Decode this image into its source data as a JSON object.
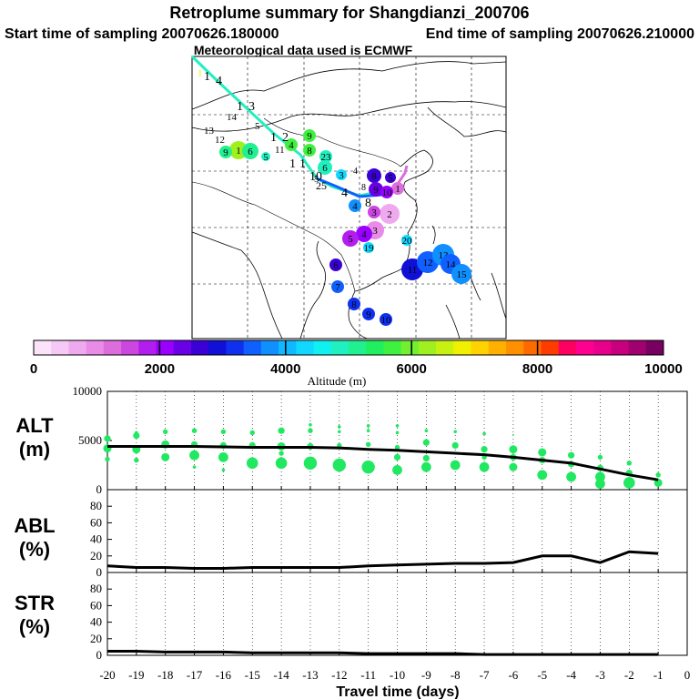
{
  "header": {
    "title": "Retroplume summary for Shangdianzi_200706",
    "start_label": "Start time of sampling 20070626.180000",
    "end_label": "End time of sampling 20070626.210000",
    "met_label": "Meteorological data used is ECMWF"
  },
  "colorbar": {
    "label": "Altitude (m)",
    "ticks": [
      "0",
      "2000",
      "4000",
      "6000",
      "8000",
      "10000"
    ],
    "colors": [
      "#fbe4fb",
      "#f5c8f5",
      "#efaaef",
      "#e88ce8",
      "#dc6edc",
      "#cc46e0",
      "#b21ef0",
      "#9900ff",
      "#6a00e6",
      "#3a00d6",
      "#1010d6",
      "#1030f0",
      "#1060ff",
      "#1090ff",
      "#10b8ff",
      "#10d8ff",
      "#10f0f0",
      "#20f0c0",
      "#20f090",
      "#20f060",
      "#40f040",
      "#70f030",
      "#a0f020",
      "#c8f010",
      "#f0f000",
      "#ffd200",
      "#ffb000",
      "#ff9000",
      "#ff6a00",
      "#ff3c00",
      "#ff0060",
      "#ff0090",
      "#e8008c",
      "#c80080",
      "#a00070",
      "#780060"
    ]
  },
  "map": {
    "plume_points": [
      {
        "label": "1",
        "x": 437,
        "y": 207,
        "r": 7,
        "color": "#dc6edc"
      },
      {
        "label": "2",
        "x": 428,
        "y": 235,
        "r": 11,
        "color": "#efaaef"
      },
      {
        "label": "3",
        "x": 412,
        "y": 253,
        "r": 10,
        "color": "#e88ce8"
      },
      {
        "label": "4",
        "x": 400,
        "y": 257,
        "r": 9,
        "color": "#9900ff"
      },
      {
        "label": "5",
        "x": 385,
        "y": 262,
        "r": 9,
        "color": "#b21ef0"
      },
      {
        "label": "6",
        "x": 369,
        "y": 291,
        "r": 7,
        "color": "#3a00d6"
      },
      {
        "label": "7",
        "x": 371,
        "y": 315,
        "r": 7,
        "color": "#1060ff"
      },
      {
        "label": "8",
        "x": 389,
        "y": 334,
        "r": 7,
        "color": "#1030f0"
      },
      {
        "label": "9",
        "x": 405,
        "y": 345,
        "r": 7,
        "color": "#1030f0"
      },
      {
        "label": "10",
        "x": 424,
        "y": 351,
        "r": 7,
        "color": "#1030f0"
      },
      {
        "label": "11",
        "x": 453,
        "y": 296,
        "r": 12,
        "color": "#1010d6"
      },
      {
        "label": "12",
        "x": 470,
        "y": 288,
        "r": 12,
        "color": "#1060ff"
      },
      {
        "label": "13",
        "x": 487,
        "y": 280,
        "r": 12,
        "color": "#1090ff"
      },
      {
        "label": "14",
        "x": 495,
        "y": 290,
        "r": 11,
        "color": "#1060ff"
      },
      {
        "label": "15",
        "x": 507,
        "y": 301,
        "r": 11,
        "color": "#1090ff"
      },
      {
        "label": "8",
        "x": 411,
        "y": 193,
        "r": 8,
        "color": "#3a00d6"
      },
      {
        "label": "9",
        "x": 413,
        "y": 208,
        "r": 8,
        "color": "#6a00e6"
      },
      {
        "label": "10",
        "x": 425,
        "y": 211,
        "r": 7,
        "color": "#9900ff"
      },
      {
        "label": "5",
        "x": 429,
        "y": 195,
        "r": 6,
        "color": "#3a00d6"
      },
      {
        "label": "3",
        "x": 411,
        "y": 233,
        "r": 7,
        "color": "#cc46e0"
      },
      {
        "label": "4",
        "x": 390,
        "y": 226,
        "r": 7,
        "color": "#1090ff"
      },
      {
        "label": "19",
        "x": 405,
        "y": 272,
        "r": 6,
        "color": "#10d8ff"
      },
      {
        "label": "20",
        "x": 447,
        "y": 264,
        "r": 6,
        "color": "#10d8ff"
      },
      {
        "label": "1",
        "x": 262,
        "y": 165,
        "r": 10,
        "color": "#a0f020"
      },
      {
        "label": "6",
        "x": 275,
        "y": 166,
        "r": 9,
        "color": "#20f090"
      },
      {
        "label": "9",
        "x": 248,
        "y": 167,
        "r": 7,
        "color": "#20f090"
      },
      {
        "label": "4",
        "x": 320,
        "y": 159,
        "r": 7,
        "color": "#40f040"
      },
      {
        "label": "8",
        "x": 340,
        "y": 165,
        "r": 7,
        "color": "#40f040"
      },
      {
        "label": "9",
        "x": 340,
        "y": 149,
        "r": 7,
        "color": "#40f040"
      },
      {
        "label": "6",
        "x": 357,
        "y": 184,
        "r": 8,
        "color": "#20f0c0"
      },
      {
        "label": "23",
        "x": 358,
        "y": 172,
        "r": 7,
        "color": "#20f0c0"
      },
      {
        "label": "3",
        "x": 375,
        "y": 192,
        "r": 6,
        "color": "#10d8ff"
      },
      {
        "label": "5",
        "x": 292,
        "y": 172,
        "r": 5,
        "color": "#20f0c0"
      }
    ],
    "track_labels": [
      {
        "label": "1",
        "x": 217,
        "y": 84,
        "size": 11,
        "color": "#f0f000"
      },
      {
        "label": "1",
        "x": 224,
        "y": 88,
        "size": 14,
        "color": "#000"
      },
      {
        "label": "4",
        "x": 237,
        "y": 93,
        "size": 14,
        "color": "#000"
      },
      {
        "label": "1",
        "x": 260,
        "y": 121,
        "size": 14,
        "color": "#000"
      },
      {
        "label": "3",
        "x": 273,
        "y": 121,
        "size": 14,
        "color": "#000"
      },
      {
        "label": "14",
        "x": 249,
        "y": 132,
        "size": 11,
        "color": "#000"
      },
      {
        "label": "5",
        "x": 280,
        "y": 142,
        "size": 11,
        "color": "#000"
      },
      {
        "label": "1",
        "x": 297,
        "y": 155,
        "size": 14,
        "color": "#000"
      },
      {
        "label": "2",
        "x": 310,
        "y": 155,
        "size": 14,
        "color": "#000"
      },
      {
        "label": "13",
        "x": 224,
        "y": 147,
        "size": 11,
        "color": "#000"
      },
      {
        "label": "12",
        "x": 236,
        "y": 157,
        "size": 11,
        "color": "#000"
      },
      {
        "label": "1",
        "x": 318,
        "y": 184,
        "size": 14,
        "color": "#000"
      },
      {
        "label": "1",
        "x": 329,
        "y": 184,
        "size": 14,
        "color": "#000"
      },
      {
        "label": "11",
        "x": 302,
        "y": 168,
        "size": 11,
        "color": "#000"
      },
      {
        "label": "10",
        "x": 340,
        "y": 198,
        "size": 14,
        "color": "#000"
      },
      {
        "label": "25",
        "x": 347,
        "y": 208,
        "size": 12,
        "color": "#000"
      },
      {
        "label": "4",
        "x": 388,
        "y": 191,
        "size": 10,
        "color": "#000"
      },
      {
        "label": "4",
        "x": 375,
        "y": 216,
        "size": 14,
        "color": "#000"
      },
      {
        "label": "8",
        "x": 397,
        "y": 209,
        "size": 10,
        "color": "#000"
      },
      {
        "label": "8",
        "x": 401,
        "y": 227,
        "size": 14,
        "color": "#000"
      },
      {
        "label": "5",
        "x": 345,
        "y": 200,
        "size": 11,
        "color": "#000"
      }
    ]
  },
  "chart_data": [
    {
      "type": "scatter",
      "title": "ALT (m)",
      "xlabel": "Travel time (days)",
      "ylabel": "ALT (m)",
      "xlim": [
        -20,
        0
      ],
      "ylim": [
        0,
        10000
      ],
      "y_ticks": [
        "0",
        "5000",
        "10000"
      ],
      "grid": "dotted",
      "median_line": {
        "x": [
          -20,
          -19,
          -18,
          -17,
          -16,
          -15,
          -14,
          -13,
          -12,
          -11,
          -10,
          -9,
          -8,
          -7,
          -6,
          -5,
          -4,
          -3,
          -2,
          -1
        ],
        "y": [
          4400,
          4400,
          4400,
          4400,
          4350,
          4300,
          4300,
          4300,
          4250,
          4100,
          4000,
          3850,
          3700,
          3550,
          3300,
          3000,
          2700,
          2100,
          1500,
          1000
        ]
      },
      "points": [
        {
          "x": -20,
          "y": 5200,
          "s": 4
        },
        {
          "x": -20,
          "y": 4200,
          "s": 5
        },
        {
          "x": -20,
          "y": 3100,
          "s": 3
        },
        {
          "x": -19,
          "y": 5500,
          "s": 4
        },
        {
          "x": -19,
          "y": 4100,
          "s": 5
        },
        {
          "x": -19,
          "y": 3000,
          "s": 3
        },
        {
          "x": -19,
          "y": 5800,
          "s": 2
        },
        {
          "x": -18,
          "y": 5900,
          "s": 3
        },
        {
          "x": -18,
          "y": 4600,
          "s": 5
        },
        {
          "x": -18,
          "y": 3300,
          "s": 5
        },
        {
          "x": -17,
          "y": 6000,
          "s": 3
        },
        {
          "x": -17,
          "y": 4600,
          "s": 4
        },
        {
          "x": -17,
          "y": 3500,
          "s": 6
        },
        {
          "x": -17,
          "y": 2300,
          "s": 2
        },
        {
          "x": -16,
          "y": 5900,
          "s": 3
        },
        {
          "x": -16,
          "y": 4500,
          "s": 4
        },
        {
          "x": -16,
          "y": 3300,
          "s": 6
        },
        {
          "x": -16,
          "y": 2000,
          "s": 2
        },
        {
          "x": -15,
          "y": 5800,
          "s": 3
        },
        {
          "x": -15,
          "y": 4500,
          "s": 4
        },
        {
          "x": -15,
          "y": 2700,
          "s": 7
        },
        {
          "x": -14,
          "y": 6000,
          "s": 4
        },
        {
          "x": -14,
          "y": 4400,
          "s": 5
        },
        {
          "x": -14,
          "y": 2700,
          "s": 7
        },
        {
          "x": -14,
          "y": 3700,
          "s": 3
        },
        {
          "x": -13,
          "y": 6600,
          "s": 2
        },
        {
          "x": -13,
          "y": 6000,
          "s": 3
        },
        {
          "x": -13,
          "y": 4400,
          "s": 4
        },
        {
          "x": -13,
          "y": 2700,
          "s": 8
        },
        {
          "x": -12,
          "y": 6400,
          "s": 2
        },
        {
          "x": -12,
          "y": 5900,
          "s": 2
        },
        {
          "x": -12,
          "y": 4500,
          "s": 3
        },
        {
          "x": -12,
          "y": 2500,
          "s": 8
        },
        {
          "x": -11,
          "y": 6500,
          "s": 2
        },
        {
          "x": -11,
          "y": 6000,
          "s": 2
        },
        {
          "x": -11,
          "y": 4600,
          "s": 3
        },
        {
          "x": -11,
          "y": 2300,
          "s": 8
        },
        {
          "x": -10,
          "y": 6500,
          "s": 2
        },
        {
          "x": -10,
          "y": 5800,
          "s": 2
        },
        {
          "x": -10,
          "y": 4300,
          "s": 3
        },
        {
          "x": -10,
          "y": 3300,
          "s": 4
        },
        {
          "x": -10,
          "y": 2000,
          "s": 6
        },
        {
          "x": -9,
          "y": 6000,
          "s": 2
        },
        {
          "x": -9,
          "y": 4800,
          "s": 4
        },
        {
          "x": -9,
          "y": 3200,
          "s": 4
        },
        {
          "x": -9,
          "y": 2300,
          "s": 6
        },
        {
          "x": -8,
          "y": 5900,
          "s": 2
        },
        {
          "x": -8,
          "y": 4500,
          "s": 4
        },
        {
          "x": -8,
          "y": 2500,
          "s": 6
        },
        {
          "x": -7,
          "y": 5700,
          "s": 2
        },
        {
          "x": -7,
          "y": 4100,
          "s": 4
        },
        {
          "x": -7,
          "y": 3300,
          "s": 3
        },
        {
          "x": -7,
          "y": 2300,
          "s": 6
        },
        {
          "x": -6,
          "y": 5600,
          "s": 1
        },
        {
          "x": -6,
          "y": 4100,
          "s": 5
        },
        {
          "x": -6,
          "y": 3300,
          "s": 4
        },
        {
          "x": -6,
          "y": 2300,
          "s": 5
        },
        {
          "x": -5,
          "y": 3800,
          "s": 5
        },
        {
          "x": -5,
          "y": 3000,
          "s": 4
        },
        {
          "x": -5,
          "y": 1500,
          "s": 6
        },
        {
          "x": -4,
          "y": 3500,
          "s": 4
        },
        {
          "x": -4,
          "y": 2600,
          "s": 4
        },
        {
          "x": -4,
          "y": 1300,
          "s": 6
        },
        {
          "x": -3,
          "y": 3300,
          "s": 3
        },
        {
          "x": -3,
          "y": 2200,
          "s": 4
        },
        {
          "x": -3,
          "y": 1300,
          "s": 6
        },
        {
          "x": -3,
          "y": 600,
          "s": 6
        },
        {
          "x": -2,
          "y": 2700,
          "s": 3
        },
        {
          "x": -2,
          "y": 1700,
          "s": 4
        },
        {
          "x": -2,
          "y": 700,
          "s": 7
        },
        {
          "x": -1,
          "y": 1500,
          "s": 3
        },
        {
          "x": -1,
          "y": 700,
          "s": 5
        }
      ]
    },
    {
      "type": "line",
      "title": "ABL (%)",
      "ylabel": "ABL (%)",
      "xlim": [
        -20,
        0
      ],
      "ylim": [
        0,
        100
      ],
      "y_ticks": [
        "0",
        "20",
        "40",
        "60",
        "80"
      ],
      "x": [
        -20,
        -19,
        -18,
        -17,
        -16,
        -15,
        -14,
        -13,
        -12,
        -11,
        -10,
        -9,
        -8,
        -7,
        -6,
        -5,
        -4,
        -3,
        -2,
        -1
      ],
      "values": [
        8,
        6,
        6,
        5,
        5,
        6,
        6,
        6,
        6,
        8,
        9,
        10,
        11,
        11,
        12,
        20,
        20,
        12,
        25,
        23
      ]
    },
    {
      "type": "line",
      "title": "STR (%)",
      "xlabel": "Travel time (days)",
      "ylabel": "STR (%)",
      "xlim": [
        -20,
        0
      ],
      "ylim": [
        0,
        100
      ],
      "y_ticks": [
        "0",
        "20",
        "40",
        "60",
        "80"
      ],
      "x_ticks": [
        "-20",
        "-19",
        "-18",
        "-17",
        "-16",
        "-15",
        "-14",
        "-13",
        "-12",
        "-11",
        "-10",
        "-9",
        "-8",
        "-7",
        "-6",
        "-5",
        "-4",
        "-3",
        "-2",
        "-1",
        "0"
      ],
      "x": [
        -20,
        -19,
        -18,
        -17,
        -16,
        -15,
        -14,
        -13,
        -12,
        -11,
        -10,
        -9,
        -8,
        -7,
        -6,
        -5,
        -4,
        -3,
        -2,
        -1
      ],
      "values": [
        5,
        5,
        4,
        4,
        4,
        3,
        3,
        3,
        3,
        2,
        2,
        2,
        2,
        1,
        1,
        1,
        1,
        1,
        1,
        1
      ]
    }
  ],
  "panels": {
    "alt_label_1": "ALT",
    "alt_label_2": "(m)",
    "abl_label_1": "ABL",
    "abl_label_2": "(%)",
    "str_label_1": "STR",
    "str_label_2": "(%)"
  }
}
